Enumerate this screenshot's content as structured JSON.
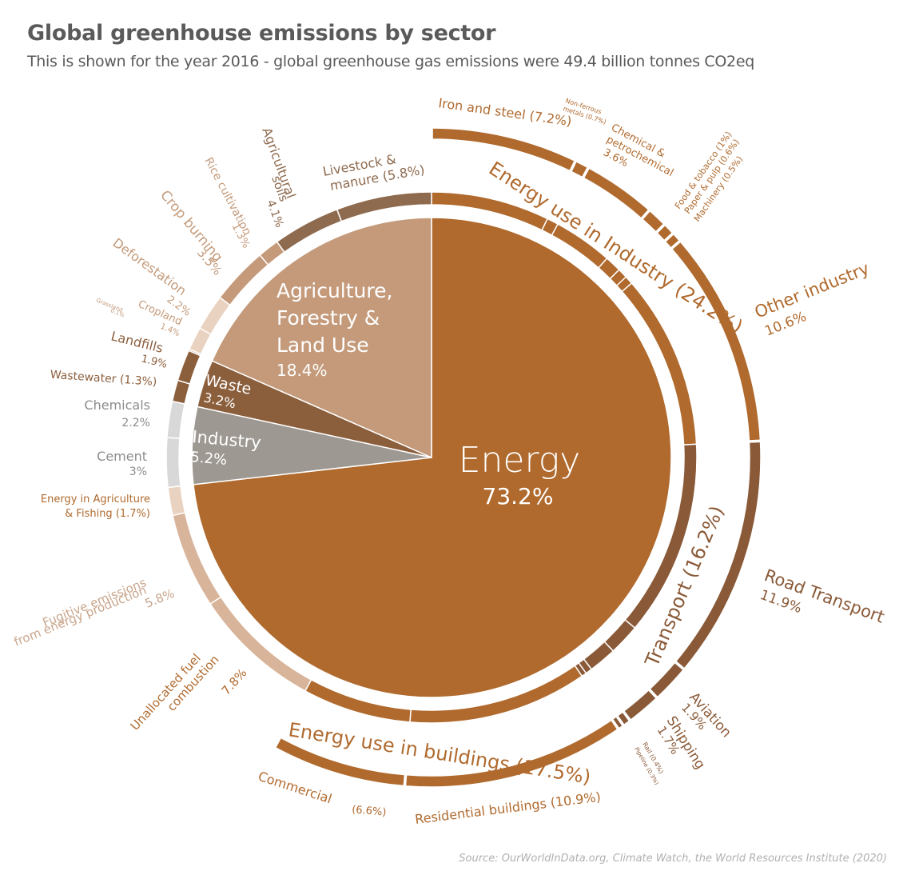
{
  "title": "Global greenhouse emissions by sector",
  "subtitle": "This is shown for the year 2016 - global greenhouse gas emissions were 49.4 billion tonnes CO2eq",
  "source": "Source: OurWorldInData.org, Climate Watch, the World Resources Institute (2020)",
  "colors": {
    "energy": "#b06a2e",
    "energy_dark": "#8a5a38",
    "agriculture": "#c49a7a",
    "agriculture_dark": "#8e6a4e",
    "waste": "#8b5e3c",
    "industry": "#9e9892",
    "energy_light": "#d8b49a",
    "energy_lighter": "#ead2c0",
    "grey_light": "#d8d8d8"
  },
  "chart_data": {
    "type": "pie",
    "unit": "%",
    "sectors": [
      {
        "name": "Energy",
        "value": 73.2
      },
      {
        "name": "Agriculture, Forestry & Land Use",
        "value": 18.4
      },
      {
        "name": "Waste",
        "value": 3.2
      },
      {
        "name": "Industry",
        "value": 5.2
      }
    ],
    "groups": [
      {
        "name": "Energy use in Industry",
        "value": 24.2
      },
      {
        "name": "Transport",
        "value": 16.2
      },
      {
        "name": "Energy use in buildings",
        "value": 17.5
      }
    ],
    "subsectors": [
      {
        "name": "Iron and steel",
        "value": 7.2
      },
      {
        "name": "Non-ferrous metals",
        "value": 0.7
      },
      {
        "name": "Chemical & petrochemical",
        "value": 3.6
      },
      {
        "name": "Food & tobacco",
        "value": 1
      },
      {
        "name": "Paper & pulp",
        "value": 0.6
      },
      {
        "name": "Machinery",
        "value": 0.5
      },
      {
        "name": "Other industry",
        "value": 10.6
      },
      {
        "name": "Road Transport",
        "value": 11.9
      },
      {
        "name": "Aviation",
        "value": 1.9
      },
      {
        "name": "Shipping",
        "value": 1.7
      },
      {
        "name": "Rail",
        "value": 0.4
      },
      {
        "name": "Pipeline",
        "value": 0.3
      },
      {
        "name": "Residential buildings",
        "value": 10.9
      },
      {
        "name": "Commercial",
        "value": 6.6
      },
      {
        "name": "Unallocated fuel combustion",
        "value": 7.8
      },
      {
        "name": "Fugitive emissions from energy production",
        "value": 5.8
      },
      {
        "name": "Energy in Agriculture & Fishing",
        "value": 1.7
      },
      {
        "name": "Cement",
        "value": 3
      },
      {
        "name": "Chemicals",
        "value": 2.2
      },
      {
        "name": "Wastewater",
        "value": 1.3
      },
      {
        "name": "Landfills",
        "value": 1.9
      },
      {
        "name": "Grassland",
        "value": 0.1
      },
      {
        "name": "Cropland",
        "value": 1.4
      },
      {
        "name": "Deforestation",
        "value": 2.2
      },
      {
        "name": "Crop burning",
        "value": 3.5
      },
      {
        "name": "Rice cultivation",
        "value": 1.3
      },
      {
        "name": "Agricultural soils",
        "value": 4.1
      },
      {
        "name": "Livestock & manure",
        "value": 5.8
      }
    ]
  },
  "labels": {
    "energy_name": "Energy",
    "energy_pct": "73.2%",
    "agri_l1": "Agriculture,",
    "agri_l2": "Forestry &",
    "agri_l3": "Land Use",
    "agri_pct": "18.4%",
    "waste_name": "Waste",
    "waste_pct": "3.2%",
    "industry_name": "Industry",
    "industry_pct": "5.2%",
    "grp_industry": "Energy use in Industry (24.2%)",
    "grp_transport": "Transport (16.2%)",
    "grp_buildings": "Energy use in buildings (17.5%)",
    "iron": "Iron and steel (7.2%)",
    "nonferrous_l1": "Non-ferrous",
    "nonferrous_l2": "metals (0.7%)",
    "chem_l1": "Chemical &",
    "chem_l2": "petrochemical",
    "chem_l3": "3.6%",
    "food": "Food & tobacco (1%)",
    "paper": "Paper & pulp (0.6%)",
    "machinery": "Machinery (0.5%)",
    "other_ind_l1": "Other industry",
    "other_ind_l2": "10.6%",
    "road_l1": "Road Transport",
    "road_l2": "11.9%",
    "aviation_l1": "Aviation",
    "aviation_l2": "1.9%",
    "shipping_l1": "Shipping",
    "shipping_l2": "1.7%",
    "rail": "Rail (0.4%)",
    "pipeline": "Pipeline (0.3%)",
    "residential": "Residential buildings (10.9%)",
    "commercial": "Commercial",
    "commercial_pct": "(6.6%)",
    "unalloc_l1": "Unallocated fuel",
    "unalloc_l2": "combustion",
    "unalloc_l3": "7.8%",
    "fugitive_l1": "Fugitive emissions",
    "fugitive_l2": "from energy production",
    "fugitive_l3": "5.8%",
    "agfish_l1": "Energy in Agriculture",
    "agfish_l2": "& Fishing (1.7%)",
    "cement_l1": "Cement",
    "cement_l2": "3%",
    "chemicals_l1": "Chemicals",
    "chemicals_l2": "2.2%",
    "wastewater": "Wastewater (1.3%)",
    "landfills_l1": "Landfills",
    "landfills_l2": "1.9%",
    "grassland_l1": "Grassland",
    "grassland_l2": "0.1%",
    "cropland_l1": "Cropland",
    "cropland_l2": "1.4%",
    "deforest_l1": "Deforestation",
    "deforest_l2": "2.2%",
    "cropburn_l1": "Crop burning",
    "cropburn_l2": "3.5%",
    "rice_l1": "Rice cultivation",
    "rice_l2": "1.3%",
    "agsoils_l1": "Agricultural",
    "agsoils_l2": "soils",
    "agsoils_l3": "4.1%",
    "livestock_l1": "Livestock &",
    "livestock_l2": "manure (5.8%)"
  }
}
